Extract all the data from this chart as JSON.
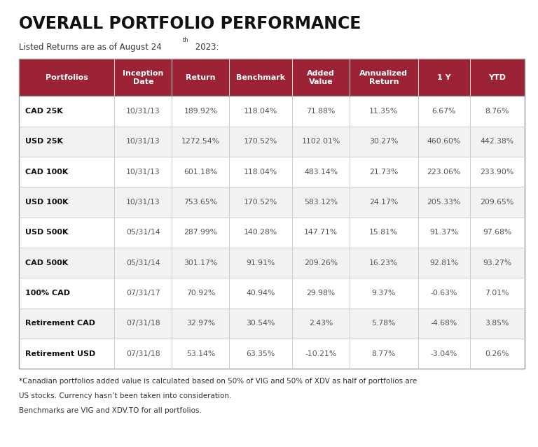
{
  "title": "OVERALL PORTFOLIO PERFORMANCE",
  "subtitle_pre": "Listed Returns are as of August 24",
  "subtitle_sup": "th",
  "subtitle_post": " 2023:",
  "header_bg": "#9B2335",
  "header_text_color": "#FFFFFF",
  "row_bg_odd": "#FFFFFF",
  "row_bg_even": "#F5F5F5",
  "border_color": "#CCCCCC",
  "text_color_bold": "#111111",
  "text_color_data": "#555555",
  "columns": [
    "Portfolios",
    "Inception\nDate",
    "Return",
    "Benchmark",
    "Added\nValue",
    "Annualized\nReturn",
    "1 Y",
    "YTD"
  ],
  "col_widths": [
    1.75,
    1.05,
    1.05,
    1.15,
    1.05,
    1.25,
    0.95,
    1.0
  ],
  "rows": [
    [
      "CAD 25K",
      "10/31/13",
      "189.92%",
      "118.04%",
      "71.88%",
      "11.35%",
      "6.67%",
      "8.76%"
    ],
    [
      "USD 25K",
      "10/31/13",
      "1272.54%",
      "170.52%",
      "1102.01%",
      "30.27%",
      "460.60%",
      "442.38%"
    ],
    [
      "CAD 100K",
      "10/31/13",
      "601.18%",
      "118.04%",
      "483.14%",
      "21.73%",
      "223.06%",
      "233.90%"
    ],
    [
      "USD 100K",
      "10/31/13",
      "753.65%",
      "170.52%",
      "583.12%",
      "24.17%",
      "205.33%",
      "209.65%"
    ],
    [
      "USD 500K",
      "05/31/14",
      "287.99%",
      "140.28%",
      "147.71%",
      "15.81%",
      "91.37%",
      "97.68%"
    ],
    [
      "CAD 500K",
      "05/31/14",
      "301.17%",
      "91.91%",
      "209.26%",
      "16.23%",
      "92.81%",
      "93.27%"
    ],
    [
      "100% CAD",
      "07/31/17",
      "70.92%",
      "40.94%",
      "29.98%",
      "9.37%",
      "-0.63%",
      "7.01%"
    ],
    [
      "Retirement CAD",
      "07/31/18",
      "32.97%",
      "30.54%",
      "2.43%",
      "5.78%",
      "-4.68%",
      "3.85%"
    ],
    [
      "Retirement USD",
      "07/31/18",
      "53.14%",
      "63.35%",
      "-10.21%",
      "8.77%",
      "-3.04%",
      "0.26%"
    ]
  ],
  "footnote1": "*Canadian portfolios added value is calculated based on 50% of VIG and 50% of XDV as half of portfolios are",
  "footnote2": "US stocks. Currency hasn’t been taken into consideration.",
  "footnote3": "Benchmarks are VIG and XDV.TO for all portfolios."
}
